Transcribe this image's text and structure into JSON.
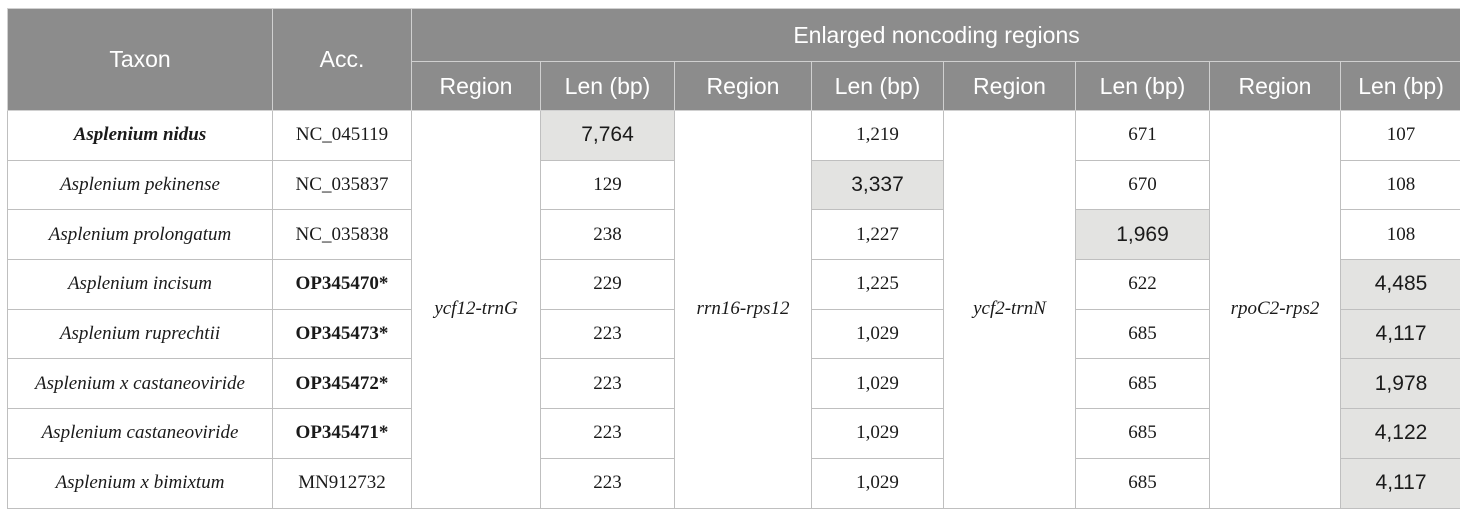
{
  "header": {
    "taxon": "Taxon",
    "acc": "Acc.",
    "group": "Enlarged noncoding regions",
    "region": "Region",
    "len": "Len (bp)"
  },
  "regions": [
    "ycf12-trnG",
    "rrn16-rps12",
    "ycf2-trnN",
    "rpoC2-rps2"
  ],
  "rows": [
    {
      "taxon": "Asplenium nidus",
      "acc": "NC_045119",
      "len": [
        "7,764",
        "1,219",
        "671",
        "107"
      ]
    },
    {
      "taxon": "Asplenium pekinense",
      "acc": "NC_035837",
      "len": [
        "129",
        "3,337",
        "670",
        "108"
      ]
    },
    {
      "taxon": "Asplenium prolongatum",
      "acc": "NC_035838",
      "len": [
        "238",
        "1,227",
        "1,969",
        "108"
      ]
    },
    {
      "taxon": "Asplenium incisum",
      "acc": "OP345470*",
      "len": [
        "229",
        "1,225",
        "622",
        "4,485"
      ]
    },
    {
      "taxon": "Asplenium ruprechtii",
      "acc": "OP345473*",
      "len": [
        "223",
        "1,029",
        "685",
        "4,117"
      ]
    },
    {
      "taxon": "Asplenium x castaneoviride",
      "acc": "OP345472*",
      "len": [
        "223",
        "1,029",
        "685",
        "1,978"
      ]
    },
    {
      "taxon": "Asplenium castaneoviride",
      "acc": "OP345471*",
      "len": [
        "223",
        "1,029",
        "685",
        "4,122"
      ]
    },
    {
      "taxon": "Asplenium x bimixtum",
      "acc": "MN912732",
      "len": [
        "223",
        "1,029",
        "685",
        "4,117"
      ]
    }
  ]
}
